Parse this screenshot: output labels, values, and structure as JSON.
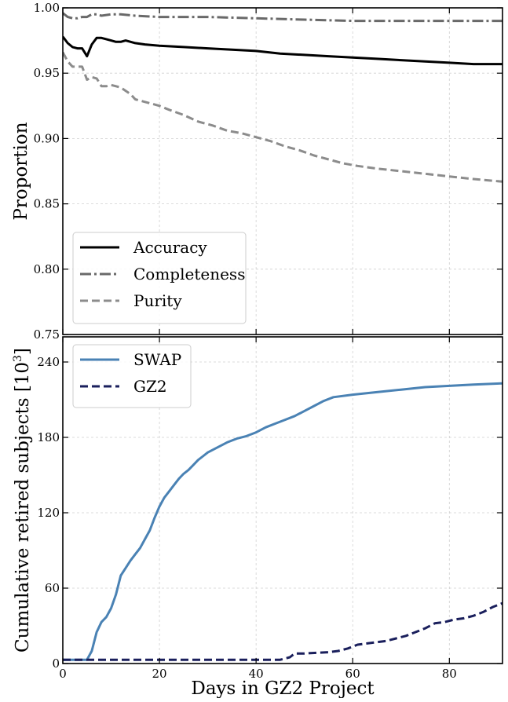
{
  "figure": {
    "xlabel": "Days in GZ2 Project"
  },
  "chart_data": [
    {
      "type": "line",
      "title": "",
      "xlabel": "",
      "ylabel": "Proportion",
      "xlim": [
        0,
        91
      ],
      "ylim": [
        0.75,
        1.0
      ],
      "x_ticks": [
        0,
        20,
        40,
        60,
        80
      ],
      "y_ticks": [
        0.75,
        0.8,
        0.85,
        0.9,
        0.95,
        1.0
      ],
      "y_tick_labels": [
        "0.75",
        "0.80",
        "0.85",
        "0.90",
        "0.95",
        "1.00"
      ],
      "grid": true,
      "legend_position": "lower-left",
      "series": [
        {
          "name": "Accuracy",
          "color": "#000000",
          "style": "solid",
          "points": [
            [
              0,
              0.978
            ],
            [
              1,
              0.973
            ],
            [
              2,
              0.97
            ],
            [
              3,
              0.969
            ],
            [
              4,
              0.969
            ],
            [
              5,
              0.963
            ],
            [
              6,
              0.972
            ],
            [
              7,
              0.977
            ],
            [
              8,
              0.977
            ],
            [
              9,
              0.976
            ],
            [
              10,
              0.975
            ],
            [
              11,
              0.974
            ],
            [
              12,
              0.974
            ],
            [
              13,
              0.975
            ],
            [
              15,
              0.973
            ],
            [
              17,
              0.972
            ],
            [
              20,
              0.971
            ],
            [
              25,
              0.97
            ],
            [
              30,
              0.969
            ],
            [
              35,
              0.968
            ],
            [
              40,
              0.967
            ],
            [
              45,
              0.965
            ],
            [
              50,
              0.964
            ],
            [
              55,
              0.963
            ],
            [
              60,
              0.962
            ],
            [
              65,
              0.961
            ],
            [
              70,
              0.96
            ],
            [
              75,
              0.959
            ],
            [
              80,
              0.958
            ],
            [
              85,
              0.957
            ],
            [
              91,
              0.957
            ]
          ]
        },
        {
          "name": "Completeness",
          "color": "#696969",
          "style": "dashdot",
          "points": [
            [
              0,
              0.996
            ],
            [
              1,
              0.993
            ],
            [
              2,
              0.992
            ],
            [
              3,
              0.992
            ],
            [
              4,
              0.993
            ],
            [
              5,
              0.993
            ],
            [
              6,
              0.995
            ],
            [
              7,
              0.995
            ],
            [
              8,
              0.994
            ],
            [
              10,
              0.995
            ],
            [
              12,
              0.995
            ],
            [
              15,
              0.994
            ],
            [
              20,
              0.993
            ],
            [
              30,
              0.993
            ],
            [
              40,
              0.992
            ],
            [
              50,
              0.991
            ],
            [
              60,
              0.99
            ],
            [
              70,
              0.99
            ],
            [
              80,
              0.99
            ],
            [
              91,
              0.99
            ]
          ]
        },
        {
          "name": "Purity",
          "color": "#8c8c8c",
          "style": "dashed",
          "points": [
            [
              0,
              0.966
            ],
            [
              1,
              0.959
            ],
            [
              2,
              0.955
            ],
            [
              3,
              0.955
            ],
            [
              4,
              0.955
            ],
            [
              5,
              0.945
            ],
            [
              6,
              0.947
            ],
            [
              7,
              0.946
            ],
            [
              8,
              0.94
            ],
            [
              9,
              0.94
            ],
            [
              10,
              0.941
            ],
            [
              11,
              0.94
            ],
            [
              12,
              0.939
            ],
            [
              14,
              0.934
            ],
            [
              15,
              0.93
            ],
            [
              17,
              0.928
            ],
            [
              19,
              0.926
            ],
            [
              20,
              0.925
            ],
            [
              22,
              0.922
            ],
            [
              25,
              0.918
            ],
            [
              28,
              0.913
            ],
            [
              31,
              0.91
            ],
            [
              34,
              0.906
            ],
            [
              37,
              0.904
            ],
            [
              40,
              0.901
            ],
            [
              43,
              0.898
            ],
            [
              46,
              0.894
            ],
            [
              49,
              0.891
            ],
            [
              52,
              0.887
            ],
            [
              55,
              0.884
            ],
            [
              58,
              0.881
            ],
            [
              61,
              0.879
            ],
            [
              65,
              0.877
            ],
            [
              70,
              0.875
            ],
            [
              75,
              0.873
            ],
            [
              80,
              0.871
            ],
            [
              85,
              0.869
            ],
            [
              91,
              0.867
            ]
          ]
        }
      ]
    },
    {
      "type": "line",
      "title": "",
      "xlabel": "Days in GZ2 Project",
      "ylabel": "Cumulative retired subjects [10",
      "ylabel_sup": "3",
      "ylabel_end": "]",
      "xlim": [
        0,
        91
      ],
      "ylim": [
        0,
        260
      ],
      "x_ticks": [
        0,
        20,
        40,
        60,
        80
      ],
      "y_ticks": [
        0,
        60,
        120,
        180,
        240
      ],
      "grid": true,
      "legend_position": "upper-left",
      "series": [
        {
          "name": "SWAP",
          "color": "#4a82b4",
          "style": "solid",
          "points": [
            [
              0,
              3
            ],
            [
              5,
              3
            ],
            [
              6,
              10
            ],
            [
              7,
              25
            ],
            [
              8,
              33
            ],
            [
              9,
              37
            ],
            [
              10,
              44
            ],
            [
              11,
              55
            ],
            [
              12,
              70
            ],
            [
              13,
              76
            ],
            [
              14,
              82
            ],
            [
              15,
              87
            ],
            [
              16,
              92
            ],
            [
              17,
              99
            ],
            [
              18,
              106
            ],
            [
              19,
              116
            ],
            [
              20,
              125
            ],
            [
              21,
              132
            ],
            [
              22,
              137
            ],
            [
              23,
              142
            ],
            [
              24,
              147
            ],
            [
              25,
              151
            ],
            [
              26,
              154
            ],
            [
              27,
              158
            ],
            [
              28,
              162
            ],
            [
              29,
              165
            ],
            [
              30,
              168
            ],
            [
              32,
              172
            ],
            [
              34,
              176
            ],
            [
              36,
              179
            ],
            [
              38,
              181
            ],
            [
              40,
              184
            ],
            [
              42,
              188
            ],
            [
              44,
              191
            ],
            [
              46,
              194
            ],
            [
              48,
              197
            ],
            [
              50,
              201
            ],
            [
              52,
              205
            ],
            [
              54,
              209
            ],
            [
              56,
              212
            ],
            [
              60,
              214
            ],
            [
              65,
              216
            ],
            [
              70,
              218
            ],
            [
              75,
              220
            ],
            [
              80,
              221
            ],
            [
              85,
              222
            ],
            [
              91,
              223
            ]
          ]
        },
        {
          "name": "GZ2",
          "color": "#1a1f5c",
          "style": "dashed",
          "points": [
            [
              0,
              3
            ],
            [
              10,
              3
            ],
            [
              20,
              3
            ],
            [
              30,
              3
            ],
            [
              40,
              3
            ],
            [
              45,
              3
            ],
            [
              46,
              4
            ],
            [
              47,
              5
            ],
            [
              48,
              8
            ],
            [
              50,
              8
            ],
            [
              55,
              9
            ],
            [
              57,
              10
            ],
            [
              59,
              12
            ],
            [
              61,
              15
            ],
            [
              63,
              16
            ],
            [
              65,
              17
            ],
            [
              67,
              18
            ],
            [
              69,
              20
            ],
            [
              71,
              22
            ],
            [
              73,
              25
            ],
            [
              75,
              28
            ],
            [
              77,
              32
            ],
            [
              79,
              33
            ],
            [
              81,
              35
            ],
            [
              83,
              36
            ],
            [
              85,
              38
            ],
            [
              87,
              41
            ],
            [
              89,
              45
            ],
            [
              91,
              48
            ]
          ]
        }
      ]
    }
  ]
}
